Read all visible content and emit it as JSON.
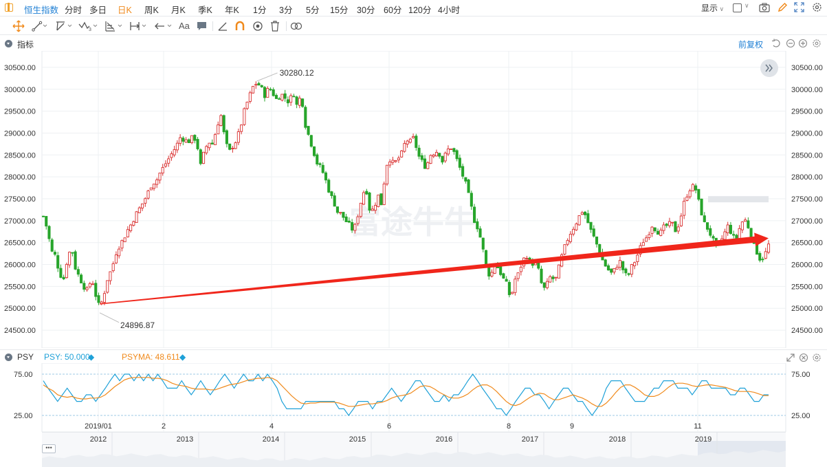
{
  "header": {
    "instrument": "恒生指数",
    "periods": [
      "分时",
      "多日",
      "日K",
      "周K",
      "月K",
      "季K",
      "年K",
      "1分",
      "3分",
      "5分",
      "15分",
      "30分",
      "60分",
      "120分",
      "4小时"
    ],
    "selected_period": "日K",
    "display_label": "显示"
  },
  "toolbar": {
    "tools": [
      "move-tool",
      "line-tool",
      "ray-tool",
      "wave-tool",
      "fib-tool",
      "measure-tool",
      "arrow-tool",
      "text-tool",
      "note-tool",
      "ruler-tool",
      "magnet-tool",
      "eye-tool",
      "delete-tool",
      "link-tool"
    ],
    "text_tool_label": "Aa"
  },
  "main_panel": {
    "label": "指标",
    "adjust_label": "前复权",
    "watermark": "富途牛牛"
  },
  "psy_panel": {
    "label": "PSY",
    "psy_label": "PSY: 50.000",
    "psyma_label": "PSYMA: 48.611",
    "colors": {
      "psy": "#1fa1d8",
      "psyma": "#f08a1c"
    }
  },
  "colors": {
    "up": "#d92f2f",
    "down": "#27a52b",
    "arrow": "#f0261b",
    "grid": "#eef0f3"
  },
  "chart_data": [
    {
      "type": "candlestick",
      "title": "恒生指数 日K",
      "yticks": [
        "30500.00",
        "30000.00",
        "29500.00",
        "29000.00",
        "28500.00",
        "28000.00",
        "27500.00",
        "27000.00",
        "26500.00",
        "26000.00",
        "25500.00",
        "25000.00",
        "24500.00"
      ],
      "ylim": [
        24250,
        30750
      ],
      "annotations": {
        "high": "30280.12",
        "low": "24896.87"
      },
      "x_markers": [
        "2019/01",
        "2",
        "4",
        "6",
        "8",
        "9",
        "11"
      ],
      "trend_arrow": {
        "from": 25100,
        "to": 26600
      },
      "close_path": [
        [
          0,
          27100
        ],
        [
          2,
          26800
        ],
        [
          4,
          26300
        ],
        [
          6,
          26200
        ],
        [
          8,
          25800
        ],
        [
          10,
          25650
        ],
        [
          12,
          26150
        ],
        [
          14,
          26400
        ],
        [
          16,
          25900
        ],
        [
          18,
          25700
        ],
        [
          20,
          25500
        ],
        [
          22,
          25400
        ],
        [
          24,
          25700
        ],
        [
          26,
          25300
        ],
        [
          28,
          25000
        ],
        [
          30,
          25300
        ],
        [
          32,
          25700
        ],
        [
          34,
          25900
        ],
        [
          36,
          26250
        ],
        [
          38,
          26450
        ],
        [
          40,
          26600
        ],
        [
          42,
          26800
        ],
        [
          44,
          26950
        ],
        [
          46,
          27150
        ],
        [
          48,
          27300
        ],
        [
          50,
          27450
        ],
        [
          52,
          27650
        ],
        [
          54,
          27850
        ],
        [
          56,
          27900
        ],
        [
          58,
          28100
        ],
        [
          60,
          28250
        ],
        [
          62,
          28400
        ],
        [
          64,
          28550
        ],
        [
          66,
          28700
        ],
        [
          68,
          28900
        ],
        [
          70,
          28850
        ],
        [
          72,
          28800
        ],
        [
          74,
          28900
        ],
        [
          76,
          28850
        ],
        [
          78,
          28250
        ],
        [
          80,
          28600
        ],
        [
          82,
          28800
        ],
        [
          84,
          28750
        ],
        [
          86,
          29100
        ],
        [
          88,
          29450
        ],
        [
          90,
          28900
        ],
        [
          92,
          28550
        ],
        [
          94,
          28700
        ],
        [
          96,
          28850
        ],
        [
          98,
          29150
        ],
        [
          100,
          29550
        ],
        [
          102,
          29800
        ],
        [
          104,
          30050
        ],
        [
          106,
          30150
        ],
        [
          108,
          30050
        ],
        [
          110,
          29850
        ],
        [
          112,
          30050
        ],
        [
          114,
          29900
        ],
        [
          116,
          29750
        ],
        [
          118,
          29900
        ],
        [
          120,
          29800
        ],
        [
          122,
          29700
        ],
        [
          124,
          29950
        ],
        [
          126,
          29600
        ],
        [
          128,
          29900
        ],
        [
          130,
          29200
        ],
        [
          132,
          28900
        ],
        [
          134,
          28600
        ],
        [
          136,
          28300
        ],
        [
          138,
          28200
        ],
        [
          140,
          27950
        ],
        [
          142,
          27650
        ],
        [
          144,
          27450
        ],
        [
          146,
          27200
        ],
        [
          148,
          27150
        ],
        [
          150,
          27000
        ],
        [
          152,
          26900
        ],
        [
          154,
          26750
        ],
        [
          156,
          27100
        ],
        [
          158,
          27500
        ],
        [
          160,
          27800
        ],
        [
          162,
          27250
        ],
        [
          164,
          27250
        ],
        [
          166,
          27600
        ],
        [
          168,
          27350
        ],
        [
          170,
          28250
        ],
        [
          172,
          28400
        ],
        [
          174,
          28300
        ],
        [
          176,
          28400
        ],
        [
          178,
          28550
        ],
        [
          180,
          28850
        ],
        [
          182,
          28800
        ],
        [
          184,
          28900
        ],
        [
          186,
          28500
        ],
        [
          188,
          28350
        ],
        [
          190,
          28200
        ],
        [
          192,
          28500
        ],
        [
          194,
          28550
        ],
        [
          196,
          28600
        ],
        [
          198,
          28350
        ],
        [
          200,
          28550
        ],
        [
          202,
          28700
        ],
        [
          204,
          28550
        ],
        [
          206,
          28300
        ],
        [
          208,
          28050
        ],
        [
          210,
          27800
        ],
        [
          212,
          27400
        ],
        [
          214,
          27000
        ],
        [
          216,
          26800
        ],
        [
          218,
          26400
        ],
        [
          220,
          25900
        ],
        [
          222,
          25700
        ],
        [
          224,
          26050
        ],
        [
          226,
          25900
        ],
        [
          228,
          25700
        ],
        [
          230,
          25550
        ],
        [
          232,
          25200
        ],
        [
          234,
          25650
        ],
        [
          236,
          25800
        ],
        [
          238,
          26100
        ],
        [
          240,
          26200
        ],
        [
          242,
          26000
        ],
        [
          244,
          26050
        ],
        [
          246,
          25850
        ],
        [
          248,
          25400
        ],
        [
          250,
          25550
        ],
        [
          252,
          25750
        ],
        [
          254,
          25600
        ],
        [
          256,
          25950
        ],
        [
          258,
          26300
        ],
        [
          260,
          26550
        ],
        [
          262,
          26750
        ],
        [
          264,
          26900
        ],
        [
          266,
          27100
        ],
        [
          268,
          27250
        ],
        [
          270,
          27000
        ],
        [
          272,
          26750
        ],
        [
          274,
          26550
        ],
        [
          276,
          26300
        ],
        [
          278,
          26050
        ],
        [
          280,
          25900
        ],
        [
          282,
          25800
        ],
        [
          284,
          25900
        ],
        [
          286,
          26100
        ],
        [
          288,
          25850
        ],
        [
          290,
          25700
        ],
        [
          292,
          25950
        ],
        [
          294,
          26100
        ],
        [
          296,
          26350
        ],
        [
          298,
          26550
        ],
        [
          300,
          26650
        ],
        [
          302,
          26900
        ],
        [
          304,
          26800
        ],
        [
          306,
          26700
        ],
        [
          308,
          26850
        ],
        [
          310,
          26900
        ],
        [
          312,
          26950
        ],
        [
          314,
          26750
        ],
        [
          316,
          27000
        ],
        [
          318,
          27400
        ],
        [
          320,
          27650
        ],
        [
          322,
          27800
        ],
        [
          324,
          27700
        ],
        [
          326,
          27300
        ],
        [
          328,
          26950
        ],
        [
          330,
          26800
        ],
        [
          332,
          26600
        ],
        [
          334,
          26400
        ],
        [
          336,
          26500
        ],
        [
          338,
          26700
        ],
        [
          340,
          26900
        ],
        [
          342,
          26650
        ],
        [
          344,
          26550
        ],
        [
          346,
          26900
        ],
        [
          348,
          27050
        ],
        [
          350,
          26850
        ],
        [
          352,
          26500
        ],
        [
          354,
          26300
        ],
        [
          356,
          26100
        ],
        [
          358,
          26200
        ],
        [
          360,
          26450
        ]
      ]
    },
    {
      "type": "line",
      "title": "PSY",
      "yticks": [
        "75.00",
        "25.00"
      ],
      "ylim": [
        15,
        85
      ],
      "series": [
        {
          "name": "PSY",
          "values": [
            67,
            58,
            50,
            42,
            50,
            58,
            50,
            42,
            42,
            50,
            50,
            42,
            50,
            58,
            67,
            75,
            67,
            75,
            75,
            67,
            75,
            67,
            75,
            67,
            75,
            67,
            58,
            58,
            58,
            67,
            58,
            50,
            58,
            67,
            58,
            50,
            58,
            67,
            75,
            67,
            58,
            67,
            75,
            67,
            67,
            75,
            67,
            75,
            67,
            58,
            42,
            33,
            33,
            33,
            33,
            42,
            42,
            42,
            42,
            42,
            42,
            42,
            33,
            33,
            25,
            33,
            42,
            42,
            42,
            33,
            42,
            42,
            50,
            58,
            50,
            42,
            50,
            58,
            67,
            67,
            58,
            50,
            42,
            42,
            50,
            42,
            50,
            50,
            58,
            67,
            75,
            67,
            58,
            50,
            42,
            33,
            33,
            25,
            33,
            42,
            50,
            58,
            58,
            50,
            50,
            42,
            33,
            42,
            50,
            58,
            58,
            50,
            42,
            42,
            33,
            25,
            33,
            42,
            58,
            67,
            67,
            67,
            58,
            50,
            42,
            42,
            42,
            50,
            58,
            58,
            67,
            67,
            67,
            58,
            58,
            58,
            50,
            58,
            67,
            67,
            58,
            58,
            58,
            58,
            50,
            50,
            58,
            58,
            50,
            42,
            42,
            50,
            50
          ]
        },
        {
          "name": "PSYMA",
          "values": [
            62,
            58,
            55,
            50,
            48,
            47,
            48,
            46,
            45,
            45,
            46,
            46,
            47,
            50,
            55,
            60,
            64,
            68,
            70,
            71,
            71,
            71,
            71,
            70,
            70,
            69,
            67,
            64,
            62,
            61,
            60,
            58,
            57,
            57,
            57,
            56,
            56,
            58,
            60,
            62,
            63,
            64,
            66,
            68,
            69,
            70,
            70,
            71,
            70,
            67,
            61,
            55,
            49,
            44,
            40,
            39,
            40,
            40,
            41,
            41,
            41,
            41,
            40,
            38,
            36,
            36,
            37,
            38,
            39,
            39,
            40,
            41,
            43,
            46,
            48,
            49,
            50,
            52,
            56,
            60,
            61,
            60,
            57,
            53,
            50,
            47,
            46,
            46,
            48,
            51,
            56,
            60,
            62,
            62,
            59,
            54,
            48,
            42,
            38,
            37,
            39,
            43,
            47,
            50,
            52,
            51,
            47,
            44,
            44,
            46,
            48,
            50,
            48,
            46,
            43,
            39,
            36,
            36,
            40,
            46,
            53,
            59,
            62,
            62,
            59,
            55,
            50,
            48,
            48,
            50,
            54,
            59,
            63,
            64,
            64,
            63,
            61,
            60,
            61,
            62,
            62,
            61,
            60,
            59,
            57,
            55,
            54,
            54,
            54,
            53,
            51,
            49,
            49
          ]
        }
      ]
    }
  ],
  "navigator": {
    "year_labels": [
      "2012",
      "2013",
      "2014",
      "2015",
      "2016",
      "2017",
      "2018",
      "2019"
    ]
  }
}
